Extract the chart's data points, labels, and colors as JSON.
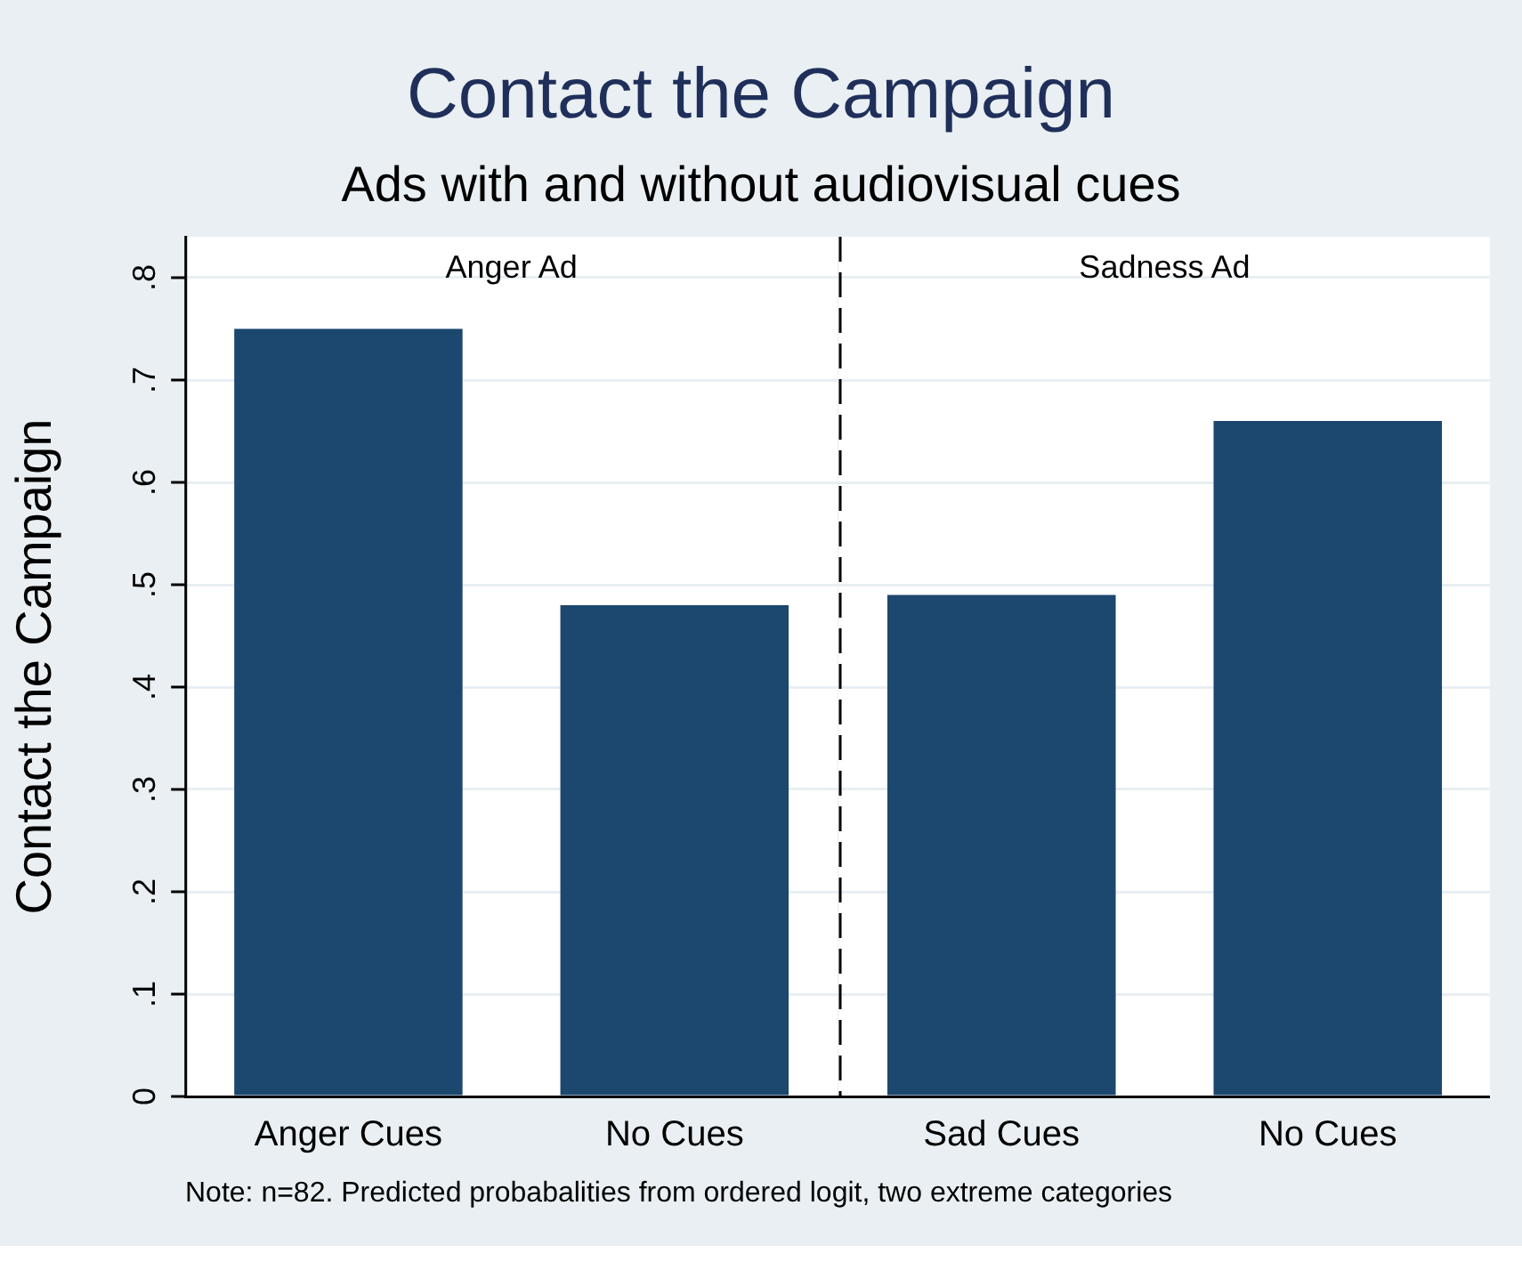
{
  "chart_data": [
    {
      "type": "bar",
      "title": "Contact the Campaign",
      "subtitle": "Ads with and without audiovisual cues",
      "ylabel": "Contact the Campaign",
      "categories": [
        "Anger Cues",
        "No Cues"
      ],
      "values": [
        0.75,
        0.48
      ],
      "color": "#1c476e",
      "ylim": [
        0,
        0.84
      ],
      "yticks": [
        {
          "value": 0,
          "label": "0"
        },
        {
          "value": 0.1,
          "label": ".1"
        },
        {
          "value": 0.2,
          "label": ".2"
        },
        {
          "value": 0.3,
          "label": ".3"
        },
        {
          "value": 0.4,
          "label": ".4"
        },
        {
          "value": 0.5,
          "label": ".5"
        },
        {
          "value": 0.6,
          "label": ".6"
        },
        {
          "value": 0.7,
          "label": ".7"
        },
        {
          "value": 0.8,
          "label": ".8"
        }
      ],
      "grid": "y",
      "legend": false,
      "annotations": [
        "Anger Ad",
        "Note: n=82. Predicted probabalities from ordered logit, two extreme categories"
      ]
    },
    {
      "type": "bar",
      "categories": [
        "Sad Cues",
        "No Cues"
      ],
      "values": [
        0.49,
        0.66
      ],
      "color": "#1c476e",
      "ylim": [
        0,
        0.84
      ],
      "grid": "y",
      "legend": false,
      "tick_labels": "x",
      "annotations": [
        "Sadness Ad"
      ]
    }
  ]
}
